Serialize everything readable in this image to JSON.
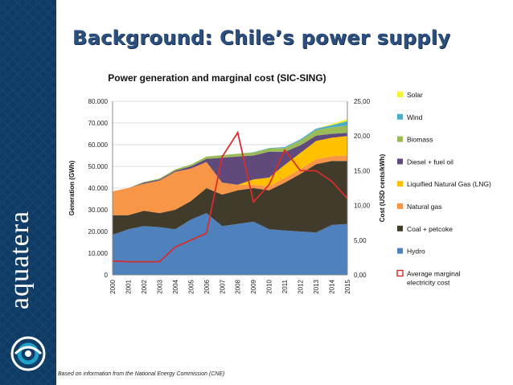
{
  "slide": {
    "title": "Background: Chile’s power supply",
    "brand": "aquatera",
    "source_note": "Based on information from the National Energy Commission (CNE)"
  },
  "chart_data": {
    "type": "area",
    "title": "Power generation and marginal cost (SIC-SING)",
    "xlabel": "",
    "ylabel": "Generation (GWh)",
    "ylabel_right": "Cost (USD cents/kWh)",
    "x": [
      "2000",
      "2001",
      "2002",
      "2003",
      "2004",
      "2005",
      "2006",
      "2007",
      "2008",
      "2009",
      "2010",
      "2011",
      "2012",
      "2013",
      "2014",
      "2015"
    ],
    "ylim": [
      0,
      80000
    ],
    "yticks": [
      "0",
      "10.000",
      "20.000",
      "30.000",
      "40.000",
      "50.000",
      "60.000",
      "70.000",
      "80.000"
    ],
    "ylim_right": [
      0,
      25
    ],
    "yticks_right": [
      "0,00",
      "5,00",
      "10,00",
      "15,00",
      "20,00",
      "25,00"
    ],
    "grid": true,
    "legend_position": "right",
    "series": [
      {
        "name": "Hydro",
        "color": "#4f81bd",
        "values": [
          18500,
          21000,
          22500,
          22000,
          21000,
          25500,
          28500,
          22500,
          23500,
          24500,
          21000,
          20500,
          20000,
          19500,
          23000,
          23500
        ]
      },
      {
        "name": "Coal + petcoke",
        "color": "#403b2a",
        "values": [
          9000,
          6500,
          7000,
          6500,
          9000,
          8500,
          11500,
          14500,
          15500,
          15500,
          18000,
          22000,
          26500,
          31500,
          29500,
          29000
        ]
      },
      {
        "name": "Natural gas",
        "color": "#f79646",
        "values": [
          11000,
          12500,
          12500,
          15000,
          17500,
          15000,
          12000,
          5500,
          2500,
          1500,
          1800,
          2200,
          2200,
          2200,
          2200,
          2500
        ]
      },
      {
        "name": "Liquified Natural Gas (LNG)",
        "color": "#ffc000",
        "values": [
          0,
          0,
          0,
          0,
          0,
          0,
          0,
          0,
          0,
          2500,
          4000,
          6000,
          7500,
          8500,
          8500,
          9000
        ]
      },
      {
        "name": "Diesel + fuel oil",
        "color": "#604a7b",
        "values": [
          0,
          0,
          500,
          500,
          500,
          1000,
          1500,
          11500,
          13000,
          11000,
          12000,
          6000,
          3500,
          2500,
          1800,
          1500
        ]
      },
      {
        "name": "Biomass",
        "color": "#9bbb59",
        "values": [
          0,
          0,
          300,
          400,
          600,
          800,
          1000,
          1200,
          1300,
          1400,
          1500,
          1800,
          2200,
          2500,
          3000,
          3300
        ]
      },
      {
        "name": "Wind",
        "color": "#4bacc6",
        "values": [
          0,
          0,
          0,
          0,
          0,
          0,
          0,
          0,
          0,
          100,
          200,
          400,
          600,
          700,
          1000,
          2000
        ]
      },
      {
        "name": "Solar",
        "color": "#f2f236",
        "values": [
          0,
          0,
          0,
          0,
          0,
          0,
          0,
          0,
          0,
          0,
          0,
          0,
          0,
          0,
          500,
          1000
        ]
      }
    ],
    "line_series": {
      "name": "Average marginal electricity cost",
      "color": "#d62d2d",
      "axis": "right",
      "values": [
        2.0,
        1.9,
        1.9,
        1.9,
        4.0,
        5.0,
        6.0,
        17.0,
        20.5,
        10.5,
        13.0,
        18.0,
        15.0,
        15.0,
        13.5,
        11.0
      ]
    }
  }
}
